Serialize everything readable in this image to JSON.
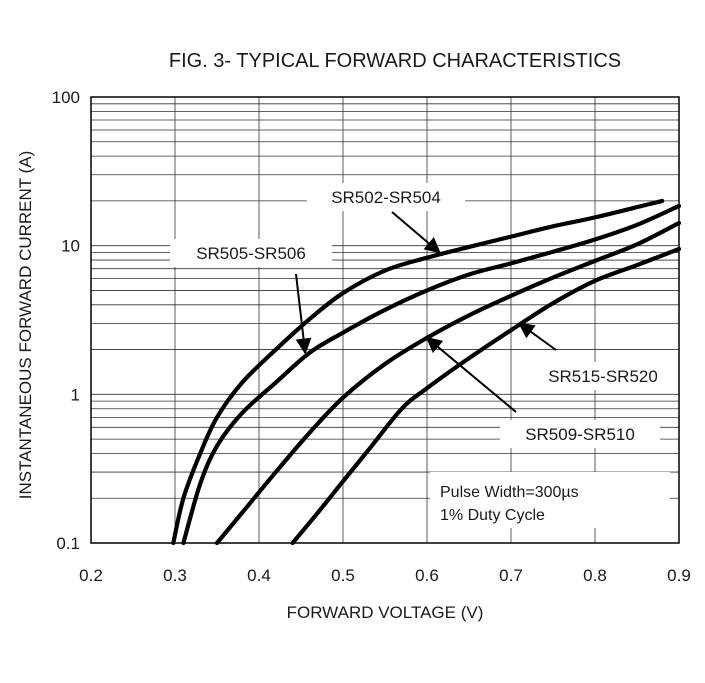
{
  "chart_data": {
    "type": "line",
    "title": "FIG. 3- TYPICAL FORWARD CHARACTERISTICS",
    "xlabel": "FORWARD VOLTAGE (V)",
    "ylabel": "INSTANTANEOUS FORWARD CURRENT (A)",
    "xlim": [
      0.2,
      0.9
    ],
    "ylim": [
      0.1,
      100
    ],
    "y_scale": "log",
    "grid": true,
    "x_ticks": [
      "0.2",
      "0.3",
      "0.4",
      "0.5",
      "0.6",
      "0.7",
      "0.8",
      "0.9"
    ],
    "y_ticks": [
      "0.1",
      "1",
      "10",
      "100"
    ],
    "series": [
      {
        "name": "SR502-SR504",
        "x": [
          0.298,
          0.31,
          0.33,
          0.35,
          0.38,
          0.42,
          0.46,
          0.5,
          0.55,
          0.6,
          0.65,
          0.7,
          0.75,
          0.8,
          0.88
        ],
        "y": [
          0.1,
          0.2,
          0.4,
          0.7,
          1.2,
          2.0,
          3.2,
          4.8,
          6.8,
          8.3,
          9.8,
          11.5,
          13.5,
          15.5,
          20
        ]
      },
      {
        "name": "SR505-SR506",
        "x": [
          0.31,
          0.33,
          0.35,
          0.38,
          0.42,
          0.46,
          0.5,
          0.55,
          0.6,
          0.65,
          0.7,
          0.75,
          0.8,
          0.85,
          0.9
        ],
        "y": [
          0.1,
          0.25,
          0.45,
          0.75,
          1.2,
          1.9,
          2.6,
          3.7,
          5.0,
          6.4,
          7.6,
          9.1,
          11.0,
          13.8,
          18.5
        ]
      },
      {
        "name": "SR509-SR510",
        "x": [
          0.35,
          0.38,
          0.42,
          0.46,
          0.5,
          0.55,
          0.6,
          0.65,
          0.7,
          0.75,
          0.8,
          0.85,
          0.9
        ],
        "y": [
          0.1,
          0.16,
          0.3,
          0.55,
          0.95,
          1.6,
          2.4,
          3.4,
          4.6,
          6.1,
          7.9,
          10.2,
          14.2
        ]
      },
      {
        "name": "SR515-SR520",
        "x": [
          0.44,
          0.47,
          0.5,
          0.53,
          0.57,
          0.6,
          0.65,
          0.7,
          0.75,
          0.8,
          0.85,
          0.9
        ],
        "y": [
          0.1,
          0.16,
          0.26,
          0.42,
          0.8,
          1.1,
          1.75,
          2.7,
          4.1,
          5.8,
          7.4,
          9.5
        ]
      }
    ],
    "annotations": [
      {
        "text": "SR502-SR504",
        "points_to": "SR502-SR504",
        "at": [
          0.615,
          9.0
        ]
      },
      {
        "text": "SR505-SR506",
        "points_to": "SR505-SR506",
        "at": [
          0.455,
          1.9
        ]
      },
      {
        "text": "SR515-SR520",
        "points_to": "SR515-SR520",
        "at": [
          0.71,
          3.0
        ]
      },
      {
        "text": "SR509-SR510",
        "points_to": "SR509-SR510",
        "at": [
          0.6,
          2.4
        ]
      }
    ],
    "note_lines": [
      "Pulse Width=300µs",
      "1% Duty Cycle"
    ]
  }
}
